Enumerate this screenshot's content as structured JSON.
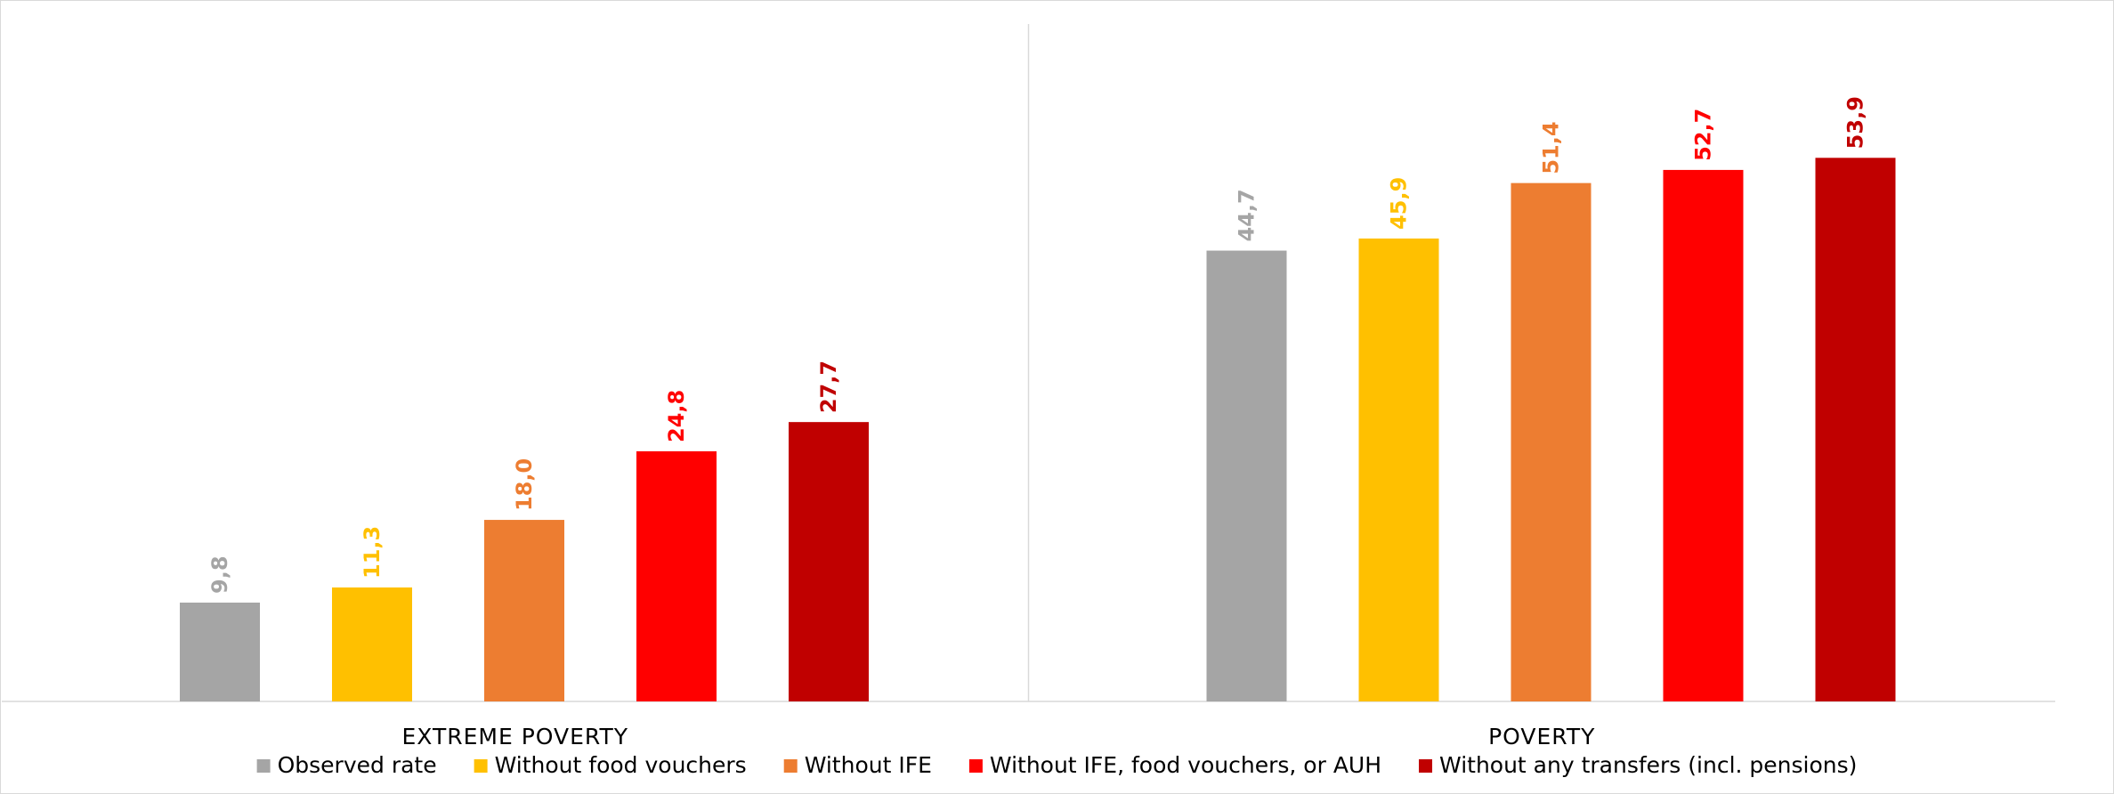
{
  "chart_data": {
    "type": "bar",
    "title": "",
    "xlabel": "",
    "ylabel": "",
    "ylim": [
      0,
      60
    ],
    "grid": false,
    "legend_position": "bottom",
    "decimal_separator": ",",
    "categories": [
      "EXTREME POVERTY",
      "POVERTY"
    ],
    "series": [
      {
        "name": "Observed rate",
        "color": "#a5a5a5",
        "values": [
          9.8,
          44.7
        ]
      },
      {
        "name": "Without food vouchers",
        "color": "#ffc000",
        "values": [
          11.3,
          45.9
        ]
      },
      {
        "name": "Without IFE",
        "color": "#ed7d31",
        "values": [
          18.0,
          51.4
        ]
      },
      {
        "name": "Without IFE, food vouchers, or AUH",
        "color": "#ff0000",
        "values": [
          24.8,
          52.7
        ]
      },
      {
        "name": "Without any transfers (incl. pensions)",
        "color": "#c00000",
        "values": [
          27.7,
          53.9
        ]
      }
    ]
  }
}
